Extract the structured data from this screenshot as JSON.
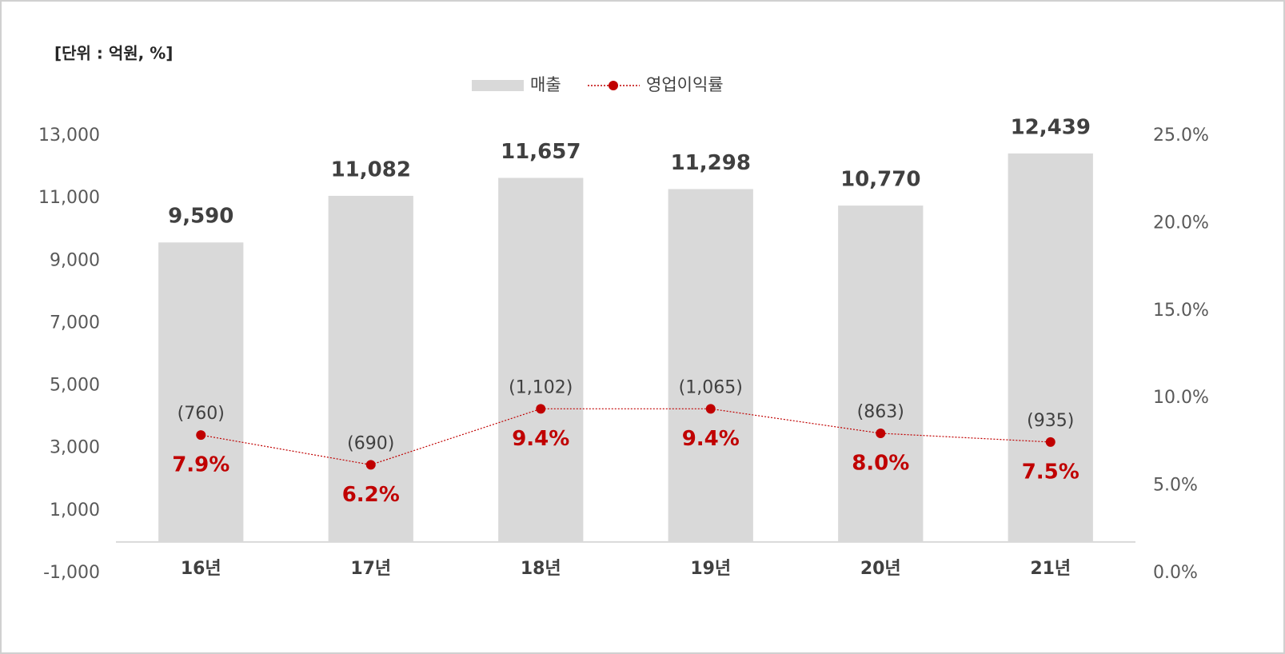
{
  "chart_data": {
    "type": "bar_line",
    "unit_label": "[단위 : 억원, %]",
    "categories": [
      "16년",
      "17년",
      "18년",
      "19년",
      "20년",
      "21년"
    ],
    "series": [
      {
        "name": "매출",
        "type": "bar",
        "color": "#d9d9d9",
        "values": [
          9590,
          11082,
          11657,
          11298,
          10770,
          12439
        ],
        "value_labels": [
          "9,590",
          "11,082",
          "11,657",
          "11,298",
          "10,770",
          "12,439"
        ]
      },
      {
        "name": "영업이익률",
        "type": "line",
        "axis": "y2",
        "color": "#c00000",
        "values": [
          7.9,
          6.2,
          9.4,
          9.4,
          8.0,
          7.5
        ],
        "value_labels": [
          "7.9%",
          "6.2%",
          "9.4%",
          "9.4%",
          "8.0%",
          "7.5%"
        ]
      }
    ],
    "profit_labels": [
      "(760)",
      "(690)",
      "(1,102)",
      "(1,065)",
      "(863)",
      "(935)"
    ],
    "ylim": [
      -1000,
      13000
    ],
    "yticks": [
      {
        "value": -1000,
        "label": "-1,000"
      },
      {
        "value": 1000,
        "label": "1,000"
      },
      {
        "value": 3000,
        "label": "3,000"
      },
      {
        "value": 5000,
        "label": "5,000"
      },
      {
        "value": 7000,
        "label": "7,000"
      },
      {
        "value": 9000,
        "label": "9,000"
      },
      {
        "value": 11000,
        "label": "11,000"
      },
      {
        "value": 13000,
        "label": "13,000"
      }
    ],
    "y2lim": [
      0,
      25
    ],
    "y2ticks": [
      {
        "value": 0,
        "label": "0.0%"
      },
      {
        "value": 5,
        "label": "5.0%"
      },
      {
        "value": 10,
        "label": "10.0%"
      },
      {
        "value": 15,
        "label": "15.0%"
      },
      {
        "value": 20,
        "label": "20.0%"
      },
      {
        "value": 25,
        "label": "25.0%"
      }
    ],
    "legend": "top"
  }
}
